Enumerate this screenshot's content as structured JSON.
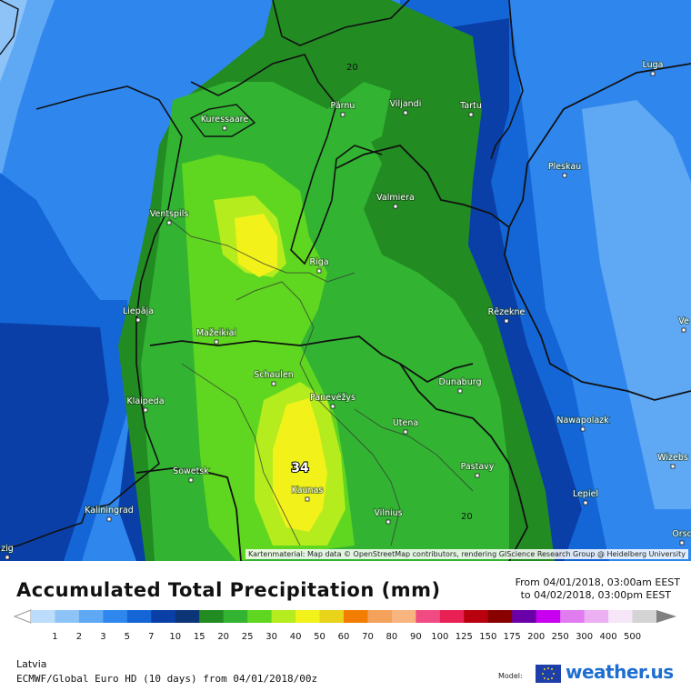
{
  "map": {
    "region_name": "Latvia",
    "attribution": "Kartenmaterial: Map data © OpenStreetMap contributors, rendering GIScience Research Group @ Heidelberg University",
    "max_value_label": "34",
    "contour_labels": [
      "20",
      "20"
    ],
    "cities": [
      {
        "name": "Kuressaare"
      },
      {
        "name": "Pärnu"
      },
      {
        "name": "Viljandi"
      },
      {
        "name": "Tartu"
      },
      {
        "name": "Luga"
      },
      {
        "name": "Pleskau"
      },
      {
        "name": "Ventspils"
      },
      {
        "name": "Valmiera"
      },
      {
        "name": "Riga"
      },
      {
        "name": "Liepāja"
      },
      {
        "name": "Rēzekne"
      },
      {
        "name": "Mažeikiai"
      },
      {
        "name": "Schaulen"
      },
      {
        "name": "Panevėžys"
      },
      {
        "name": "Dunaburg"
      },
      {
        "name": "Klaipeda"
      },
      {
        "name": "Utena"
      },
      {
        "name": "Nawapolazk"
      },
      {
        "name": "Sowetsk"
      },
      {
        "name": "Pastavy"
      },
      {
        "name": "Wizebs"
      },
      {
        "name": "Kaliningrad"
      },
      {
        "name": "Kaunas"
      },
      {
        "name": "Lepiel"
      },
      {
        "name": "Vilnius"
      },
      {
        "name": "Orsc"
      },
      {
        "name": "Ve"
      },
      {
        "name": "zig"
      }
    ]
  },
  "legend": {
    "title": "Accumulated Total Precipitation (mm)",
    "period_from": "From 04/01/2018, 03:00am EEST",
    "period_to": "to 04/02/2018, 03:00pm EEST",
    "ticks": [
      "1",
      "2",
      "3",
      "5",
      "7",
      "10",
      "15",
      "20",
      "25",
      "30",
      "40",
      "50",
      "60",
      "70",
      "80",
      "90",
      "100",
      "125",
      "150",
      "175",
      "200",
      "250",
      "300",
      "400",
      "500"
    ],
    "colors": [
      "#bcdcfb",
      "#8ec3f8",
      "#5fa8f4",
      "#2f87ee",
      "#1466d6",
      "#0a3fa8",
      "#0c3578",
      "#228b22",
      "#32b432",
      "#5fd61f",
      "#b4ec1e",
      "#f2f21a",
      "#e8d21a",
      "#f27d00",
      "#f4a15c",
      "#f7b47e",
      "#f04b82",
      "#e82054",
      "#b8000f",
      "#880000",
      "#6a00a8",
      "#c800f0",
      "#e07cf0",
      "#ecb0f2",
      "#f6e6f8",
      "#d4d4d4"
    ]
  },
  "footer": {
    "region": "Latvia",
    "model": "ECMWF/Global Euro HD (10 days) from 04/01/2018/00z",
    "model_label": "Model:",
    "brand": "weather.us"
  }
}
